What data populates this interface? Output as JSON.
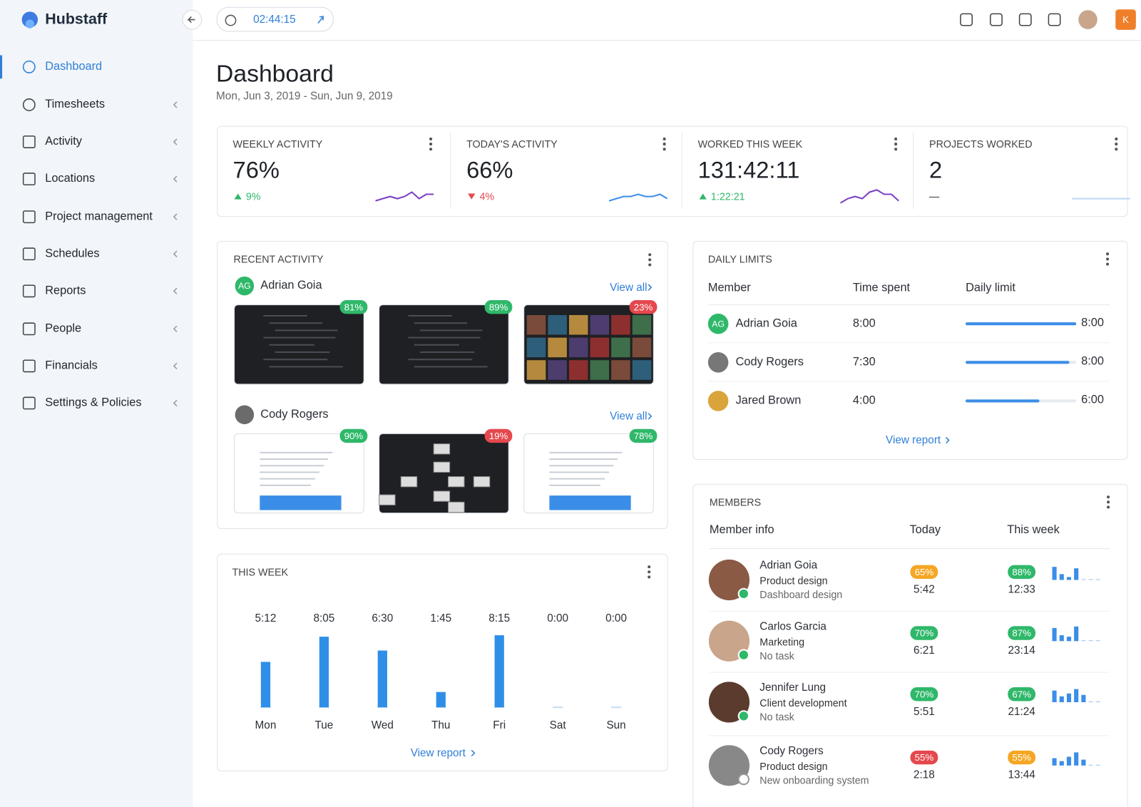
{
  "app": {
    "logo": "Hubstaff",
    "timer": "02:44:15",
    "account_initial": "K"
  },
  "sidebar": {
    "active": 0,
    "items": [
      "Dashboard",
      "Timesheets",
      "Activity",
      "Locations",
      "Project management",
      "Schedules",
      "Reports",
      "People",
      "Financials",
      "Settings & Policies"
    ]
  },
  "header": {
    "title": "Dashboard",
    "date_range": "Mon, Jun 3, 2019 - Sun, Jun 9, 2019"
  },
  "stats": [
    {
      "label": "WEEKLY ACTIVITY",
      "value": "76%",
      "change": "9%",
      "trend": "up",
      "spark_color": "#7b3fc4",
      "spark": [
        2,
        3,
        4,
        3,
        4,
        6,
        3,
        5,
        5
      ]
    },
    {
      "label": "TODAY'S ACTIVITY",
      "value": "66%",
      "change": "4%",
      "trend": "down",
      "spark_color": "#3b8ee8",
      "spark": [
        2,
        3,
        4,
        4,
        5,
        4,
        4,
        5,
        3
      ]
    },
    {
      "label": "WORKED THIS WEEK",
      "value": "131:42:11",
      "change": "1:22:21",
      "trend": "up",
      "spark_color": "#7b3fc4",
      "spark": [
        1,
        3,
        4,
        3,
        6,
        7,
        5,
        5,
        2
      ]
    },
    {
      "label": "PROJECTS WORKED",
      "value": "2",
      "change": "—",
      "trend": "none",
      "spark_color": "#b8d6f5",
      "spark": [
        3,
        3,
        3,
        3,
        3,
        3,
        3,
        3,
        3
      ]
    }
  ],
  "recent_activity": {
    "title": "RECENT ACTIVITY",
    "users": [
      {
        "initials": "AG",
        "name": "Adrian Goia",
        "view_all": "View all",
        "shots": [
          {
            "pct": "81%",
            "color": "green"
          },
          {
            "pct": "89%",
            "color": "green"
          },
          {
            "pct": "23%",
            "color": "red"
          }
        ]
      },
      {
        "name": "Cody Rogers",
        "view_all": "View all",
        "shots": [
          {
            "pct": "90%",
            "color": "green"
          },
          {
            "pct": "19%",
            "color": "red"
          },
          {
            "pct": "78%",
            "color": "green"
          }
        ]
      }
    ]
  },
  "chart_data": {
    "type": "bar",
    "title": "THIS WEEK",
    "categories": [
      "Mon",
      "Tue",
      "Wed",
      "Thu",
      "Fri",
      "Sat",
      "Sun"
    ],
    "values": [
      312,
      485,
      390,
      105,
      495,
      0,
      0
    ],
    "value_labels": [
      "5:12",
      "8:05",
      "6:30",
      "1:45",
      "8:15",
      "0:00",
      "0:00"
    ],
    "color": "#2f8fe8",
    "ylim": [
      0,
      500
    ]
  },
  "this_week_link": "View report",
  "daily_limits": {
    "title": "DAILY LIMITS",
    "columns": [
      "Member",
      "Time spent",
      "Daily limit"
    ],
    "rows": [
      {
        "initials": "AG",
        "name": "Adrian Goia",
        "spent": {
          "value": 480,
          "label": "8:00"
        },
        "limit": {
          "value": 480,
          "label": "8:00"
        }
      },
      {
        "name": "Cody Rogers",
        "spent": {
          "value": 450,
          "label": "7:30"
        },
        "limit": {
          "value": 480,
          "label": "8:00"
        }
      },
      {
        "name": "Jared Brown",
        "spent": {
          "value": 240,
          "label": "4:00"
        },
        "limit": {
          "value": 360,
          "label": "6:00"
        }
      }
    ],
    "link": "View report"
  },
  "members": {
    "title": "MEMBERS",
    "columns": [
      "Member info",
      "Today",
      "This week"
    ],
    "rows": [
      {
        "name": "Adrian Goia",
        "role": "Product design",
        "task": "Dashboard design",
        "today": {
          "pct": "65%",
          "color": "orange",
          "time": "5:42"
        },
        "week": {
          "pct": "88%",
          "color": "green",
          "time": "12:33"
        },
        "bars": [
          9,
          4,
          2,
          8,
          0,
          0,
          0
        ]
      },
      {
        "name": "Carlos Garcia",
        "role": "Marketing",
        "task": "No task",
        "today": {
          "pct": "70%",
          "color": "green",
          "time": "6:21"
        },
        "week": {
          "pct": "87%",
          "color": "green",
          "time": "23:14"
        },
        "bars": [
          9,
          4,
          3,
          10,
          0,
          0,
          0
        ]
      },
      {
        "name": "Jennifer Lung",
        "role": "Client development",
        "task": "No task",
        "today": {
          "pct": "70%",
          "color": "green",
          "time": "5:51"
        },
        "week": {
          "pct": "67%",
          "color": "green",
          "time": "21:24"
        },
        "bars": [
          8,
          4,
          6,
          9,
          5,
          0,
          0
        ]
      },
      {
        "name": "Cody Rogers",
        "role": "Product design",
        "task": "New onboarding system",
        "today": {
          "pct": "55%",
          "color": "red",
          "time": "2:18"
        },
        "week": {
          "pct": "55%",
          "color": "orange",
          "time": "13:44"
        },
        "bars": [
          5,
          3,
          6,
          9,
          4,
          0,
          0
        ]
      }
    ]
  }
}
